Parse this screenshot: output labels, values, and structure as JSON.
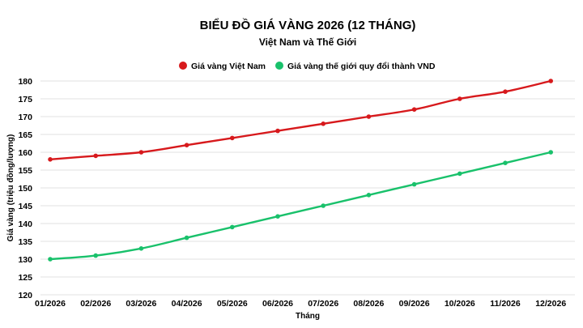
{
  "chart_data": {
    "type": "line",
    "title": "BIỂU ĐỒ GIÁ VÀNG 2026 (12 THÁNG)",
    "subtitle": "Việt Nam và Thế Giới",
    "xlabel": "Tháng",
    "ylabel": "Giá vàng (triệu đồng/lượng)",
    "categories": [
      "01/2026",
      "02/2026",
      "03/2026",
      "04/2026",
      "05/2026",
      "06/2026",
      "07/2026",
      "08/2026",
      "09/2026",
      "10/2026",
      "11/2026",
      "12/2026"
    ],
    "ylim": [
      120,
      180
    ],
    "yticks": [
      120,
      125,
      130,
      135,
      140,
      145,
      150,
      155,
      160,
      165,
      170,
      175,
      180
    ],
    "grid": "horizontal",
    "legend_position": "top-center",
    "series": [
      {
        "name": "Giá vàng Việt Nam",
        "color": "#d7191c",
        "values": [
          158,
          159,
          160,
          162,
          164,
          166,
          168,
          170,
          172,
          175,
          177,
          180
        ]
      },
      {
        "name": "Giá vàng thế giới quy đổi thành VND",
        "color": "#19c16b",
        "values": [
          130,
          131,
          133,
          136,
          139,
          142,
          145,
          148,
          151,
          154,
          157,
          160
        ]
      }
    ]
  }
}
